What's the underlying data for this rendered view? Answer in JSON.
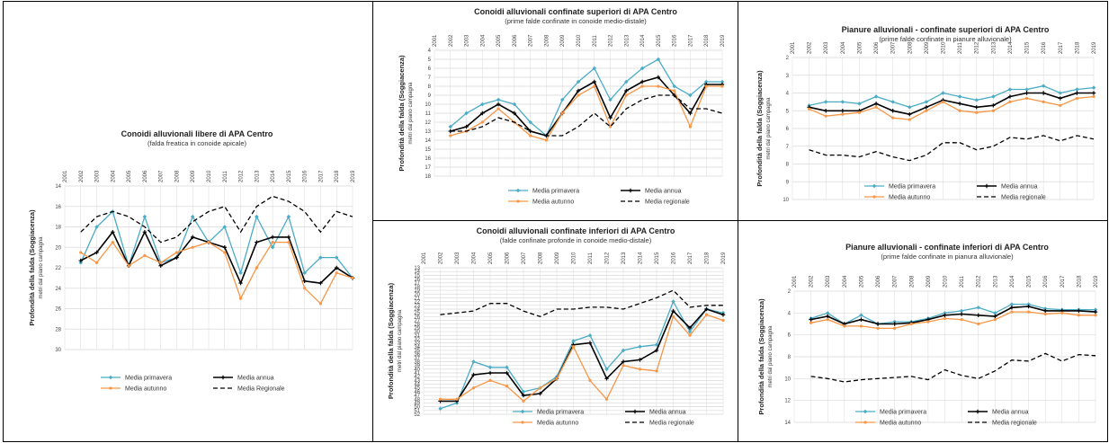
{
  "colors": {
    "primavera": "#4BACC6",
    "annua": "#000000",
    "autunno": "#F79646",
    "regionale": "#000000",
    "grid": "#d9d9d9"
  },
  "charts": [
    {
      "type": "line",
      "title": "Conoidi alluvionali libere di APA Centro",
      "subtitle": "(falda freatica in conoide apicale)",
      "ylabel": "Profondità della falda (Soggiacenza)",
      "ylabel2": "metri dal piano campagna",
      "x": [
        "2001",
        "2002",
        "2003",
        "2004",
        "2005",
        "2006",
        "2007",
        "2008",
        "2009",
        "2010",
        "2011",
        "2012",
        "2013",
        "2014",
        "2015",
        "2016",
        "2017",
        "2018",
        "2019"
      ],
      "yticks": [
        "14",
        "16",
        "18",
        "20",
        "22",
        "24",
        "26",
        "28",
        "30"
      ],
      "ylim": [
        14,
        30
      ],
      "reversed": true,
      "series": [
        {
          "name": "Media primavera",
          "style": "primavera",
          "values": [
            null,
            21.5,
            18.0,
            16.5,
            21.8,
            17.0,
            21.5,
            21.0,
            17.0,
            19.5,
            18.0,
            22.5,
            17.0,
            20.0,
            17.0,
            22.5,
            21.0,
            21.0,
            23.0
          ]
        },
        {
          "name": "Media annua",
          "style": "annua",
          "values": [
            null,
            21.3,
            20.5,
            18.5,
            21.8,
            18.5,
            21.8,
            21.0,
            19.0,
            19.5,
            20.0,
            23.5,
            19.5,
            19.0,
            19.0,
            23.3,
            23.5,
            22.0,
            23.0
          ]
        },
        {
          "name": "Media autunno",
          "style": "autunno",
          "values": [
            null,
            20.5,
            21.5,
            19.5,
            21.8,
            20.8,
            21.5,
            20.5,
            20.0,
            19.5,
            20.5,
            25.0,
            22.0,
            19.5,
            19.5,
            24.0,
            25.5,
            22.5,
            23.0
          ]
        },
        {
          "name": "Media Regionale",
          "style": "regionale",
          "values": [
            null,
            18.5,
            17.0,
            16.5,
            17.0,
            18.0,
            19.5,
            19.0,
            17.5,
            16.5,
            16.0,
            18.5,
            16.0,
            15.0,
            15.5,
            16.5,
            18.5,
            16.5,
            17.0
          ]
        }
      ],
      "legend": [
        "Media primavera",
        "Media annua",
        "Media autunno",
        "Media Regionale"
      ]
    },
    {
      "type": "line",
      "title": "Conoidi alluvionali  confinate superiori di APA Centro",
      "subtitle": "(prime falde confinate in conoide medio-distale)",
      "ylabel": "Profondità della falda (Soggiacenza)",
      "ylabel2": "metri dal piano campagna",
      "x": [
        "2001",
        "2002",
        "2003",
        "2004",
        "2005",
        "2006",
        "2007",
        "2008",
        "2009",
        "2010",
        "2011",
        "2012",
        "2013",
        "2014",
        "2015",
        "2016",
        "2017",
        "2018",
        "2019"
      ],
      "yticks": [
        "4",
        "5",
        "6",
        "7",
        "8",
        "9",
        "10",
        "11",
        "12",
        "13",
        "14",
        "15",
        "16",
        "17",
        "18"
      ],
      "ylim": [
        4,
        18
      ],
      "reversed": true,
      "series": [
        {
          "name": "Media primavera",
          "style": "primavera",
          "values": [
            null,
            12.5,
            11.0,
            10.0,
            9.5,
            10.0,
            12.0,
            13.5,
            9.5,
            7.5,
            6.0,
            9.5,
            7.5,
            6.0,
            5.0,
            8.0,
            9.0,
            7.5,
            7.5
          ]
        },
        {
          "name": "Media annua",
          "style": "annua",
          "values": [
            null,
            13.0,
            12.5,
            11.0,
            10.0,
            11.0,
            13.0,
            13.5,
            11.0,
            8.5,
            7.5,
            11.5,
            8.5,
            7.5,
            7.0,
            9.0,
            11.0,
            7.8,
            7.8
          ]
        },
        {
          "name": "Media autunno",
          "style": "autunno",
          "values": [
            null,
            13.5,
            13.0,
            12.0,
            10.5,
            12.0,
            13.5,
            14.0,
            11.0,
            9.0,
            8.0,
            12.5,
            9.0,
            8.0,
            8.0,
            8.5,
            12.5,
            8.0,
            8.0
          ]
        },
        {
          "name": "Media regionale",
          "style": "regionale",
          "values": [
            null,
            13.0,
            13.0,
            12.5,
            11.5,
            12.0,
            13.0,
            13.5,
            13.5,
            12.5,
            11.0,
            12.5,
            10.5,
            9.5,
            9.0,
            9.0,
            10.5,
            10.5,
            11.0
          ]
        }
      ],
      "legend": [
        "Media primavera",
        "Media annua",
        "Media autunno",
        "Media regionale"
      ]
    },
    {
      "type": "line",
      "title": "Pianure alluvionali - confinate superiori di APA Centro",
      "subtitle": "(prime falde confinate in pianure alluvionale)",
      "ylabel": "Profondità della falda (Soggiacenza)",
      "ylabel2": "metri dal piano campagna",
      "x": [
        "2001",
        "2002",
        "2003",
        "2004",
        "2005",
        "2006",
        "2007",
        "2008",
        "2009",
        "2010",
        "2011",
        "2012",
        "2013",
        "2014",
        "2015",
        "2016",
        "2017",
        "2018",
        "2019"
      ],
      "yticks": [
        "2",
        "3",
        "4",
        "5",
        "6",
        "7",
        "8",
        "9",
        "10"
      ],
      "ylim": [
        2,
        10
      ],
      "reversed": true,
      "series": [
        {
          "name": "Media primavera",
          "style": "primavera",
          "values": [
            null,
            4.7,
            4.5,
            4.5,
            4.6,
            4.2,
            4.5,
            4.8,
            4.5,
            4.0,
            4.2,
            4.4,
            4.2,
            3.8,
            3.8,
            3.6,
            4.0,
            3.8,
            3.7
          ]
        },
        {
          "name": "Media annua",
          "style": "annua",
          "values": [
            null,
            4.8,
            5.0,
            5.0,
            5.0,
            4.6,
            5.0,
            5.2,
            4.8,
            4.4,
            4.6,
            4.8,
            4.7,
            4.2,
            4.0,
            4.0,
            4.3,
            4.0,
            4.0
          ]
        },
        {
          "name": "Media autunno",
          "style": "autunno",
          "values": [
            null,
            4.9,
            5.3,
            5.2,
            5.1,
            4.8,
            5.4,
            5.5,
            5.0,
            4.5,
            5.0,
            5.1,
            5.0,
            4.5,
            4.3,
            4.5,
            4.7,
            4.3,
            4.2
          ]
        },
        {
          "name": "Media regionale",
          "style": "regionale",
          "values": [
            null,
            7.2,
            7.5,
            7.5,
            7.6,
            7.3,
            7.6,
            7.8,
            7.5,
            6.8,
            6.8,
            7.2,
            7.0,
            6.5,
            6.6,
            6.4,
            6.7,
            6.4,
            6.6
          ]
        }
      ],
      "legend": [
        "Media primavera",
        "Media annua",
        "Media autunno",
        "Media regionale"
      ]
    },
    {
      "type": "line",
      "title": "Conoidi alluvionali  confinate inferiori di APA  Centro",
      "subtitle": "(falde confinate profonde in conoide medio-distale)",
      "ylabel": "Profondità della falda (Soggiacenza)",
      "ylabel2": "metri dal piano campagna",
      "x": [
        "2001",
        "2002",
        "2003",
        "2004",
        "2005",
        "2006",
        "2007",
        "2008",
        "2009",
        "2010",
        "2011",
        "2012",
        "2013",
        "2014",
        "2015",
        "2016",
        "2017",
        "2018",
        "2019"
      ],
      "yticks": [
        "13",
        "14",
        "15",
        "16",
        "17",
        "18",
        "19",
        "20",
        "21",
        "22",
        "23",
        "24",
        "25",
        "26",
        "27",
        "28",
        "29",
        "30",
        "31",
        "32",
        "33",
        "34",
        "35",
        "36",
        "37",
        "38",
        "39",
        "40",
        "41",
        "42",
        "43",
        "44",
        "45",
        "46",
        "47",
        "48",
        "49",
        "50",
        "51",
        "52"
      ],
      "ylim": [
        13,
        52
      ],
      "reversed": true,
      "series": [
        {
          "name": "Media primavera",
          "style": "primavera",
          "values": [
            null,
            50.5,
            49.0,
            38.0,
            39.5,
            39.5,
            46.0,
            45.0,
            42.0,
            32.5,
            31.0,
            40.0,
            35.0,
            34.0,
            33.5,
            22.0,
            30.0,
            24.0,
            25.0
          ]
        },
        {
          "name": "Media annua",
          "style": "annua",
          "values": [
            null,
            48.5,
            48.5,
            41.5,
            41.0,
            41.0,
            47.0,
            46.5,
            42.5,
            33.5,
            33.0,
            42.5,
            38.0,
            37.5,
            35.0,
            24.5,
            29.0,
            24.0,
            25.5
          ]
        },
        {
          "name": "Media autunno",
          "style": "autunno",
          "values": [
            null,
            48.0,
            48.0,
            45.0,
            43.0,
            44.5,
            48.5,
            45.0,
            42.5,
            34.0,
            43.0,
            48.0,
            39.0,
            40.0,
            40.5,
            26.0,
            31.0,
            25.5,
            27.0
          ]
        },
        {
          "name": "Media regionale",
          "style": "regionale",
          "values": [
            null,
            25.5,
            25.0,
            24.5,
            22.5,
            22.5,
            24.5,
            26.0,
            24.0,
            24.0,
            23.5,
            23.5,
            24.0,
            22.5,
            21.0,
            19.0,
            23.5,
            23.0,
            23.0
          ]
        }
      ],
      "legend": [
        "Media primavera",
        "Media annua",
        "Media autunno",
        "Media regionale"
      ]
    },
    {
      "type": "line",
      "title": "Pianure alluvionali  - confinate inferiori di APA Centro",
      "subtitle": "(prime falde confinate in pianura alluvionale)",
      "ylabel": "Profondità della falda (Soggiacenza)",
      "ylabel2": "metri dal piano campagna",
      "x": [
        "2001",
        "2002",
        "2003",
        "2004",
        "2005",
        "2006",
        "2007",
        "2008",
        "2009",
        "2010",
        "2011",
        "2012",
        "2013",
        "2014",
        "2015",
        "2016",
        "2017",
        "2018",
        "2019"
      ],
      "yticks": [
        "2",
        "4",
        "6",
        "8",
        "10",
        "12",
        "14"
      ],
      "ylim": [
        2,
        14
      ],
      "reversed": true,
      "series": [
        {
          "name": "Media primavera",
          "style": "primavera",
          "values": [
            null,
            4.5,
            4.0,
            5.0,
            4.2,
            5.0,
            4.8,
            4.8,
            4.5,
            4.0,
            3.8,
            3.5,
            4.0,
            3.2,
            3.2,
            3.6,
            3.7,
            3.7,
            3.7
          ]
        },
        {
          "name": "Media annua",
          "style": "annua",
          "values": [
            null,
            4.6,
            4.3,
            5.0,
            4.6,
            5.0,
            5.0,
            4.9,
            4.6,
            4.2,
            4.1,
            4.2,
            4.3,
            3.5,
            3.4,
            3.8,
            3.8,
            3.8,
            3.9
          ]
        },
        {
          "name": "Media autunno",
          "style": "autunno",
          "values": [
            null,
            4.9,
            4.6,
            5.2,
            5.2,
            5.4,
            5.4,
            5.0,
            4.8,
            4.5,
            4.6,
            5.0,
            4.6,
            3.9,
            3.9,
            4.1,
            4.0,
            4.2,
            4.2
          ]
        },
        {
          "name": "Media regionale",
          "style": "regionale",
          "values": [
            null,
            9.8,
            10.0,
            10.3,
            10.1,
            10.0,
            9.9,
            9.8,
            10.1,
            9.2,
            9.7,
            10.0,
            9.3,
            8.3,
            8.4,
            7.7,
            8.4,
            7.8,
            7.9
          ]
        }
      ],
      "legend": [
        "Media primavera",
        "Media annua",
        "Media autunno",
        "Media regionale"
      ]
    }
  ]
}
